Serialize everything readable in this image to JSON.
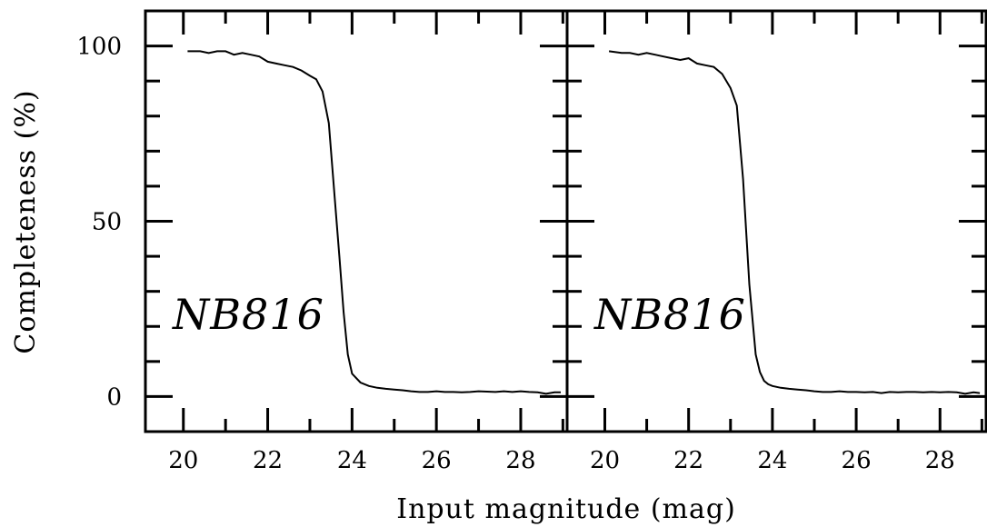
{
  "chart_data": {
    "type": "line",
    "xlabel": "Input magnitude (mag)",
    "ylabel": "Completeness (%)",
    "xlim": [
      19.1,
      29.1
    ],
    "ylim": [
      -10,
      110
    ],
    "x_ticks_major": [
      20,
      22,
      24,
      26,
      28
    ],
    "x_tick_labels": [
      "20",
      "22",
      "24",
      "26",
      "28"
    ],
    "y_ticks_major": [
      0,
      50,
      100
    ],
    "y_tick_labels": [
      "0",
      "50",
      "100"
    ],
    "grid": false,
    "panels": [
      {
        "label": "NB816",
        "x": [
          20.1,
          20.4,
          20.6,
          20.8,
          21.0,
          21.2,
          21.4,
          21.6,
          21.8,
          22.0,
          22.2,
          22.4,
          22.6,
          22.8,
          23.0,
          23.15,
          23.3,
          23.45,
          23.6,
          23.7,
          23.8,
          23.9,
          24.0,
          24.2,
          24.4,
          24.6,
          24.8,
          25.0,
          25.2,
          25.4,
          25.6,
          25.8,
          26.0,
          26.2,
          26.4,
          26.6,
          26.8,
          27.0,
          27.2,
          27.4,
          27.6,
          27.8,
          28.0,
          28.2,
          28.4,
          28.6,
          28.8,
          28.95
        ],
        "y": [
          98.5,
          98.5,
          98.0,
          98.5,
          98.5,
          97.5,
          98.0,
          97.5,
          97.0,
          95.5,
          95.0,
          94.5,
          94.0,
          93.0,
          91.5,
          90.5,
          87.0,
          78.0,
          55.0,
          40.0,
          24.0,
          12.0,
          6.5,
          4.0,
          3.0,
          2.5,
          2.2,
          2.0,
          1.8,
          1.5,
          1.3,
          1.3,
          1.5,
          1.3,
          1.3,
          1.2,
          1.3,
          1.5,
          1.4,
          1.3,
          1.5,
          1.3,
          1.5,
          1.3,
          1.2,
          0.8,
          1.2,
          1.2
        ]
      },
      {
        "label": "NB816",
        "x": [
          20.1,
          20.4,
          20.6,
          20.8,
          21.0,
          21.2,
          21.4,
          21.6,
          21.8,
          22.0,
          22.2,
          22.4,
          22.6,
          22.8,
          23.0,
          23.15,
          23.3,
          23.45,
          23.6,
          23.7,
          23.8,
          23.9,
          24.0,
          24.2,
          24.4,
          24.6,
          24.8,
          25.0,
          25.2,
          25.4,
          25.6,
          25.8,
          26.0,
          26.2,
          26.4,
          26.6,
          26.8,
          27.0,
          27.2,
          27.4,
          27.6,
          27.8,
          28.0,
          28.2,
          28.4,
          28.6,
          28.8,
          28.95
        ],
        "y": [
          98.5,
          98.0,
          98.0,
          97.5,
          98.0,
          97.5,
          97.0,
          96.5,
          96.0,
          96.5,
          95.0,
          94.5,
          94.0,
          92.0,
          88.0,
          83.0,
          62.0,
          32.0,
          12.0,
          7.0,
          4.5,
          3.5,
          3.0,
          2.5,
          2.2,
          2.0,
          1.8,
          1.5,
          1.3,
          1.3,
          1.5,
          1.3,
          1.3,
          1.2,
          1.3,
          1.0,
          1.3,
          1.2,
          1.3,
          1.3,
          1.2,
          1.3,
          1.2,
          1.3,
          1.2,
          0.8,
          1.2,
          1.0
        ]
      }
    ]
  }
}
